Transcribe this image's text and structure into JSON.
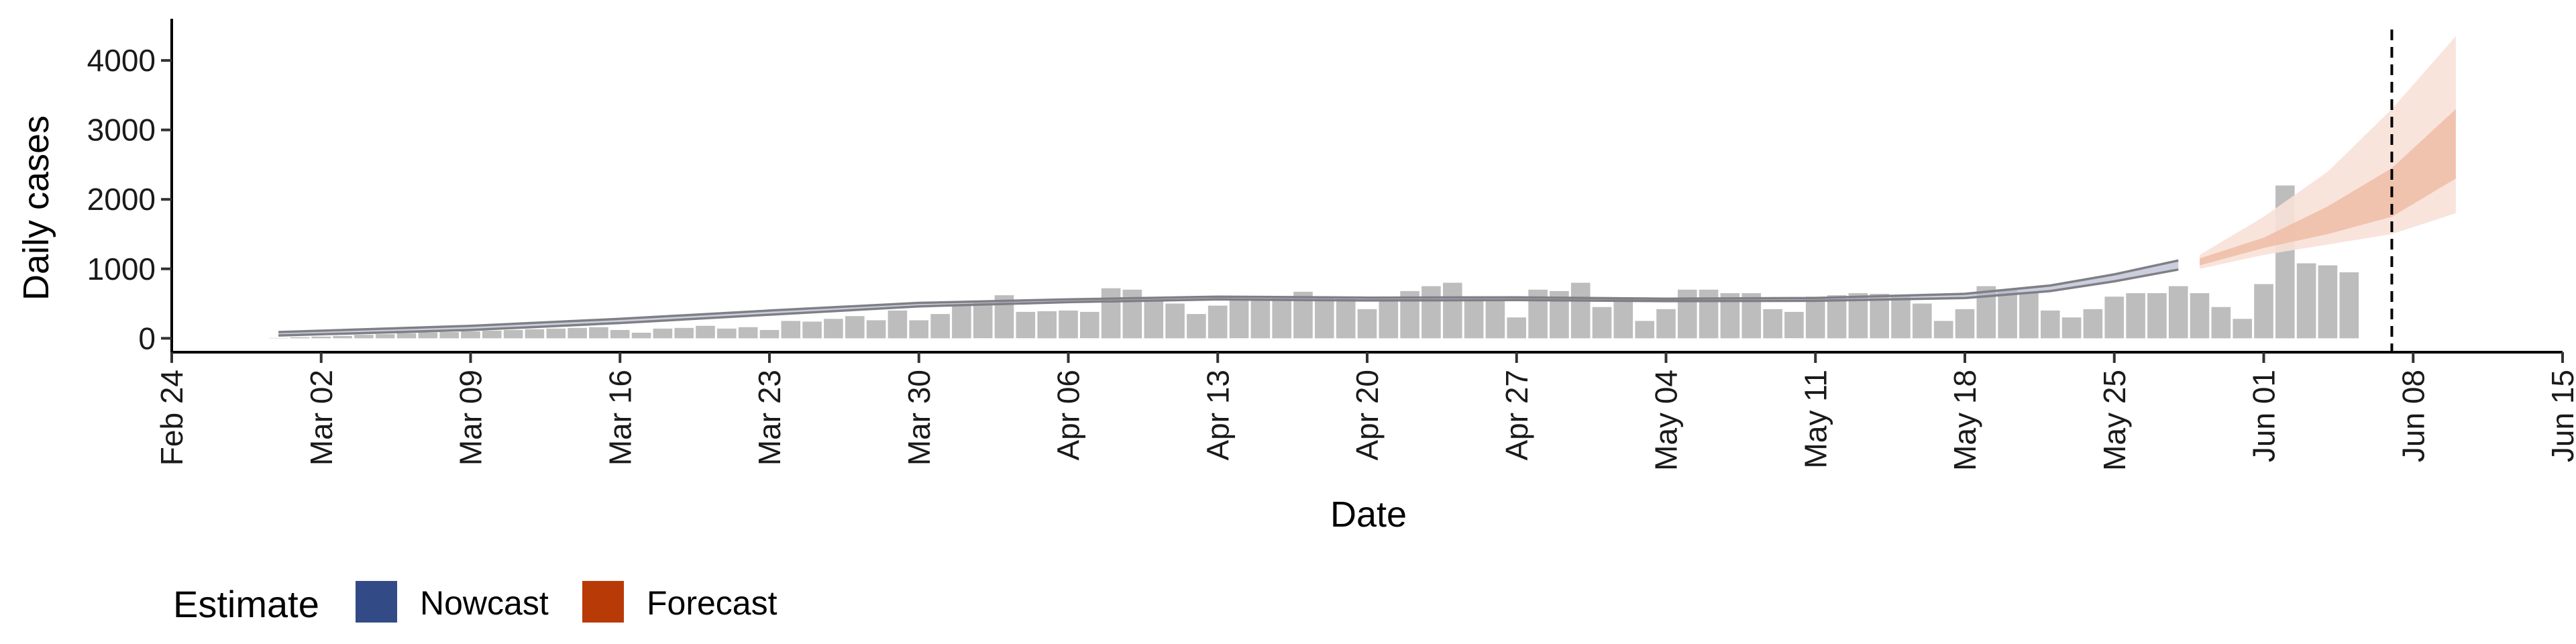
{
  "chart_data": {
    "type": "bar",
    "title": "",
    "xlabel": "Date",
    "ylabel": "Daily cases",
    "ylim": [
      -200,
      4600
    ],
    "y_ticks": [
      0,
      1000,
      2000,
      3000,
      4000
    ],
    "y_tick_labels": [
      "0",
      "1000",
      "2000",
      "3000",
      "4000"
    ],
    "x_ticks": [
      "2020-02-24",
      "2020-03-02",
      "2020-03-09",
      "2020-03-16",
      "2020-03-23",
      "2020-03-30",
      "2020-04-06",
      "2020-04-13",
      "2020-04-20",
      "2020-04-27",
      "2020-05-04",
      "2020-05-11",
      "2020-05-18",
      "2020-05-25",
      "2020-06-01",
      "2020-06-08",
      "2020-06-15"
    ],
    "x_tick_labels": [
      "Feb 24",
      "Mar 02",
      "Mar 09",
      "Mar 16",
      "Mar 23",
      "Mar 30",
      "Apr 06",
      "Apr 13",
      "Apr 20",
      "Apr 27",
      "May 04",
      "May 11",
      "May 18",
      "May 25",
      "Jun 01",
      "Jun 08",
      "Jun 15"
    ],
    "xlim": [
      "2020-02-24",
      "2020-06-15"
    ],
    "bars_start_date": "2020-02-29",
    "daily_cases": [
      5,
      15,
      25,
      35,
      50,
      60,
      75,
      85,
      90,
      100,
      110,
      120,
      130,
      140,
      150,
      160,
      120,
      80,
      140,
      150,
      180,
      140,
      160,
      120,
      250,
      240,
      280,
      320,
      260,
      400,
      260,
      350,
      470,
      520,
      620,
      380,
      390,
      400,
      380,
      720,
      700,
      560,
      500,
      350,
      470,
      550,
      560,
      600,
      670,
      600,
      580,
      420,
      560,
      680,
      750,
      800,
      600,
      540,
      300,
      700,
      680,
      800,
      450,
      580,
      250,
      420,
      700,
      700,
      650,
      650,
      420,
      380,
      600,
      620,
      650,
      640,
      600,
      500,
      250,
      420,
      750,
      700,
      650,
      400,
      300,
      420,
      600,
      650,
      650,
      750,
      650,
      450,
      280,
      780,
      2200,
      1080,
      1050,
      950
    ],
    "estimate_dates": [
      "2020-02-29",
      "2020-03-09",
      "2020-03-16",
      "2020-03-23",
      "2020-03-30",
      "2020-04-06",
      "2020-04-13",
      "2020-04-20",
      "2020-04-27",
      "2020-05-04",
      "2020-05-11",
      "2020-05-18",
      "2020-05-22",
      "2020-05-25",
      "2020-05-28"
    ],
    "nowcast_upper": [
      90,
      180,
      280,
      400,
      510,
      560,
      600,
      585,
      590,
      570,
      580,
      640,
      760,
      920,
      1120
    ],
    "nowcast_lower": [
      40,
      120,
      220,
      340,
      460,
      520,
      560,
      545,
      550,
      535,
      540,
      580,
      680,
      820,
      990
    ],
    "nowcast_median": [
      60,
      150,
      250,
      370,
      490,
      540,
      580,
      565,
      570,
      555,
      560,
      610,
      720,
      870,
      1050
    ],
    "forecast_dates": [
      "2020-05-29",
      "2020-06-01",
      "2020-06-04",
      "2020-06-07",
      "2020-06-10"
    ],
    "forecast_outer_upper": [
      1200,
      1750,
      2400,
      3300,
      4350
    ],
    "forecast_outer_lower": [
      1000,
      1200,
      1350,
      1500,
      1800
    ],
    "forecast_inner_upper": [
      1150,
      1450,
      1900,
      2450,
      3300
    ],
    "forecast_inner_lower": [
      1050,
      1300,
      1500,
      1750,
      2300
    ],
    "vline_date": "2020-06-07",
    "legend_placement": "bottom-left",
    "grid": false,
    "colors": {
      "bars": "#bdbdbd",
      "nowcast_band": "#b9bed2",
      "nowcast_line": "#7f7f86",
      "forecast_outer": "#f8e1d8",
      "forecast_inner": "#eebda6",
      "vline": "#000000",
      "legend_nowcast": "#324b87",
      "legend_forecast": "#b83a06"
    }
  },
  "legend": {
    "title": "Estimate",
    "items": [
      {
        "label": "Nowcast",
        "color": "#324b87"
      },
      {
        "label": "Forecast",
        "color": "#b83a06"
      }
    ]
  }
}
